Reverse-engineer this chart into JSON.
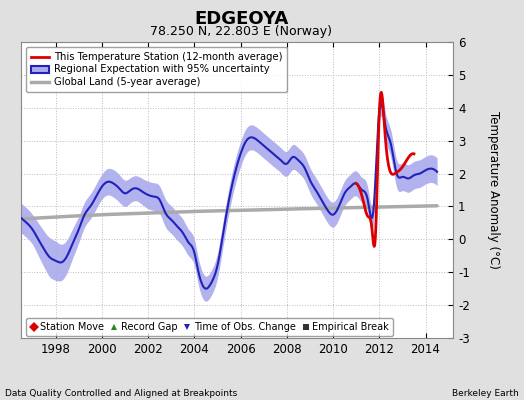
{
  "title": "EDGEOYA",
  "subtitle": "78.250 N, 22.803 E (Norway)",
  "ylabel": "Temperature Anomaly (°C)",
  "footer_left": "Data Quality Controlled and Aligned at Breakpoints",
  "footer_right": "Berkeley Earth",
  "xlim": [
    1996.5,
    2015.2
  ],
  "ylim": [
    -3,
    6
  ],
  "yticks": [
    -3,
    -2,
    -1,
    0,
    1,
    2,
    3,
    4,
    5,
    6
  ],
  "xticks": [
    1998,
    2000,
    2002,
    2004,
    2006,
    2008,
    2010,
    2012,
    2014
  ],
  "bg_color": "#e0e0e0",
  "plot_bg_color": "#ffffff",
  "regional_color": "#2222bb",
  "uncertainty_color": "#aaaaee",
  "station_color": "#dd0000",
  "global_color": "#aaaaaa",
  "legend_items": [
    {
      "label": "This Temperature Station (12-month average)",
      "color": "#dd0000"
    },
    {
      "label": "Regional Expectation with 95% uncertainty",
      "color": "#2222bb"
    },
    {
      "label": "Global Land (5-year average)",
      "color": "#aaaaaa"
    }
  ],
  "bottom_legend": [
    {
      "label": "Station Move",
      "color": "#dd0000",
      "marker": "D"
    },
    {
      "label": "Record Gap",
      "color": "#228822",
      "marker": "^"
    },
    {
      "label": "Time of Obs. Change",
      "color": "#2222bb",
      "marker": "v"
    },
    {
      "label": "Empirical Break",
      "color": "#333333",
      "marker": "s"
    }
  ],
  "regional_t": [
    1996.5,
    1996.75,
    1997.0,
    1997.25,
    1997.5,
    1997.75,
    1998.0,
    1998.25,
    1998.5,
    1998.75,
    1999.0,
    1999.25,
    1999.5,
    1999.75,
    2000.0,
    2000.25,
    2000.5,
    2000.75,
    2001.0,
    2001.25,
    2001.5,
    2001.75,
    2002.0,
    2002.25,
    2002.5,
    2002.75,
    2003.0,
    2003.25,
    2003.5,
    2003.75,
    2004.0,
    2004.15,
    2004.3,
    2004.5,
    2004.75,
    2005.0,
    2005.25,
    2005.5,
    2005.75,
    2006.0,
    2006.25,
    2006.5,
    2006.75,
    2007.0,
    2007.25,
    2007.5,
    2007.75,
    2008.0,
    2008.25,
    2008.5,
    2008.75,
    2009.0,
    2009.25,
    2009.5,
    2009.75,
    2010.0,
    2010.25,
    2010.5,
    2010.75,
    2011.0,
    2011.25,
    2011.5,
    2011.75,
    2012.0,
    2012.25,
    2012.5,
    2012.75,
    2013.0,
    2013.25,
    2013.5,
    2013.75,
    2014.0,
    2014.25,
    2014.5
  ],
  "regional_y": [
    0.65,
    0.5,
    0.3,
    0.0,
    -0.3,
    -0.55,
    -0.65,
    -0.7,
    -0.5,
    -0.1,
    0.3,
    0.75,
    1.0,
    1.3,
    1.6,
    1.75,
    1.7,
    1.55,
    1.4,
    1.5,
    1.55,
    1.45,
    1.35,
    1.3,
    1.2,
    0.8,
    0.6,
    0.4,
    0.2,
    -0.1,
    -0.4,
    -0.9,
    -1.3,
    -1.5,
    -1.3,
    -0.8,
    0.2,
    1.2,
    2.0,
    2.6,
    3.0,
    3.1,
    3.0,
    2.85,
    2.7,
    2.55,
    2.4,
    2.3,
    2.5,
    2.4,
    2.2,
    1.8,
    1.5,
    1.2,
    0.9,
    0.75,
    1.0,
    1.4,
    1.6,
    1.7,
    1.5,
    1.2,
    0.9,
    3.9,
    3.5,
    2.9,
    2.0,
    1.9,
    1.85,
    1.95,
    2.0,
    2.1,
    2.15,
    2.05
  ],
  "uncertainty": [
    0.45,
    0.45,
    0.45,
    0.5,
    0.55,
    0.6,
    0.6,
    0.55,
    0.5,
    0.45,
    0.4,
    0.38,
    0.38,
    0.38,
    0.38,
    0.4,
    0.42,
    0.42,
    0.4,
    0.38,
    0.38,
    0.4,
    0.42,
    0.42,
    0.42,
    0.42,
    0.42,
    0.42,
    0.42,
    0.4,
    0.4,
    0.4,
    0.4,
    0.38,
    0.38,
    0.38,
    0.38,
    0.38,
    0.38,
    0.38,
    0.38,
    0.38,
    0.38,
    0.38,
    0.38,
    0.38,
    0.38,
    0.38,
    0.38,
    0.38,
    0.38,
    0.38,
    0.38,
    0.38,
    0.38,
    0.38,
    0.38,
    0.38,
    0.38,
    0.38,
    0.38,
    0.38,
    0.38,
    0.38,
    0.4,
    0.42,
    0.42,
    0.42,
    0.42,
    0.42,
    0.42,
    0.42,
    0.42,
    0.42
  ],
  "global_t": [
    1996.5,
    1998.0,
    2000.0,
    2002.0,
    2004.0,
    2006.0,
    2008.0,
    2010.0,
    2012.0,
    2014.5
  ],
  "global_y": [
    0.62,
    0.68,
    0.75,
    0.8,
    0.85,
    0.88,
    0.92,
    0.95,
    0.98,
    1.02
  ],
  "station_t": [
    2011.0,
    2011.17,
    2011.33,
    2011.5,
    2011.67,
    2011.83,
    2012.0,
    2012.25,
    2012.67,
    2013.0,
    2013.33,
    2013.5
  ],
  "station_y": [
    1.7,
    1.5,
    1.1,
    0.7,
    0.4,
    0.05,
    3.85,
    3.2,
    2.0,
    2.2,
    2.55,
    2.6
  ]
}
